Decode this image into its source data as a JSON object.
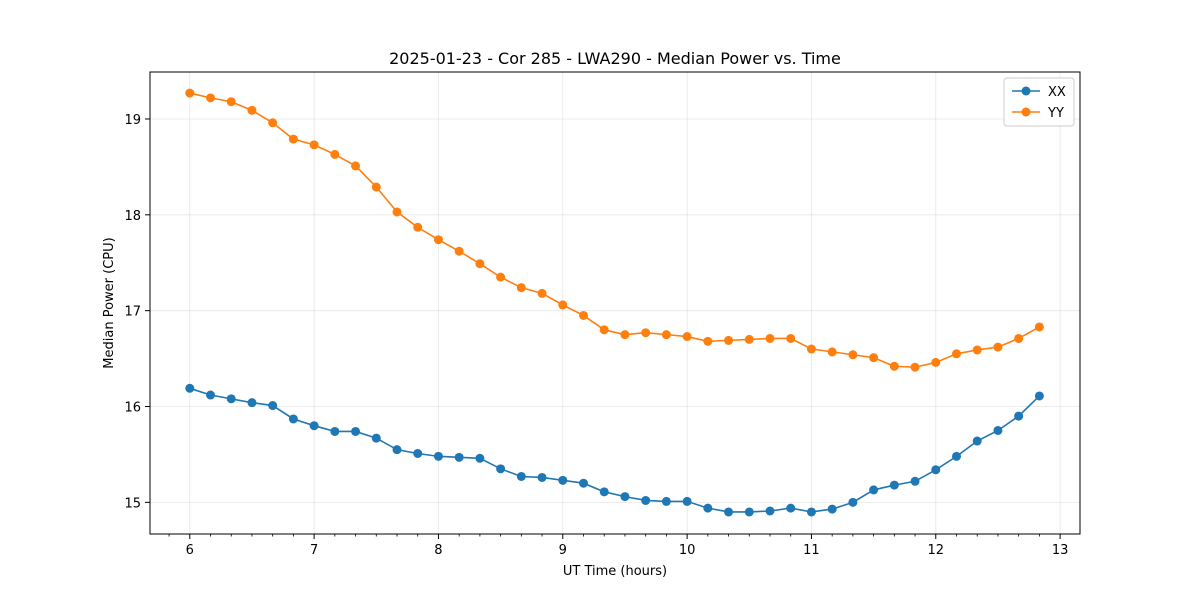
{
  "chart_data": {
    "type": "line",
    "title": "2025-01-23 - Cor 285 - LWA290 - Median Power vs. Time",
    "xlabel": "UT Time (hours)",
    "ylabel": "Median Power (CPU)",
    "xlim": [
      5.68,
      13.16
    ],
    "ylim": [
      14.67,
      19.49
    ],
    "xticks": [
      6,
      7,
      8,
      9,
      10,
      11,
      12,
      13
    ],
    "yticks": [
      15,
      16,
      17,
      18,
      19
    ],
    "grid": true,
    "legend_position": "top-right",
    "x": [
      6.0,
      6.1667,
      6.3333,
      6.5,
      6.6667,
      6.8333,
      7.0,
      7.1667,
      7.3333,
      7.5,
      7.6667,
      7.8333,
      8.0,
      8.1667,
      8.3333,
      8.5,
      8.6667,
      8.8333,
      9.0,
      9.1667,
      9.3333,
      9.5,
      9.6667,
      9.8333,
      10.0,
      10.1667,
      10.3333,
      10.5,
      10.6667,
      10.8333,
      11.0,
      11.1667,
      11.3333,
      11.5,
      11.6667,
      11.8333,
      12.0,
      12.1667,
      12.3333,
      12.5,
      12.6667,
      12.8333
    ],
    "series": [
      {
        "name": "XX",
        "color": "#1f77b4",
        "values": [
          16.19,
          16.12,
          16.08,
          16.04,
          16.01,
          15.87,
          15.8,
          15.74,
          15.74,
          15.67,
          15.55,
          15.51,
          15.48,
          15.47,
          15.46,
          15.35,
          15.27,
          15.26,
          15.23,
          15.2,
          15.11,
          15.06,
          15.02,
          15.01,
          15.01,
          14.94,
          14.9,
          14.9,
          14.91,
          14.94,
          14.9,
          14.93,
          15.0,
          15.13,
          15.18,
          15.22,
          15.34,
          15.48,
          15.64,
          15.75,
          15.9,
          16.11
        ]
      },
      {
        "name": "YY",
        "color": "#ff7f0e",
        "values": [
          19.27,
          19.22,
          19.18,
          19.09,
          18.96,
          18.79,
          18.73,
          18.63,
          18.51,
          18.29,
          18.03,
          17.87,
          17.74,
          17.62,
          17.49,
          17.35,
          17.24,
          17.18,
          17.06,
          16.95,
          16.8,
          16.75,
          16.77,
          16.75,
          16.73,
          16.68,
          16.69,
          16.7,
          16.71,
          16.71,
          16.6,
          16.57,
          16.54,
          16.51,
          16.42,
          16.41,
          16.46,
          16.55,
          16.59,
          16.62,
          16.71,
          16.83
        ]
      }
    ]
  }
}
